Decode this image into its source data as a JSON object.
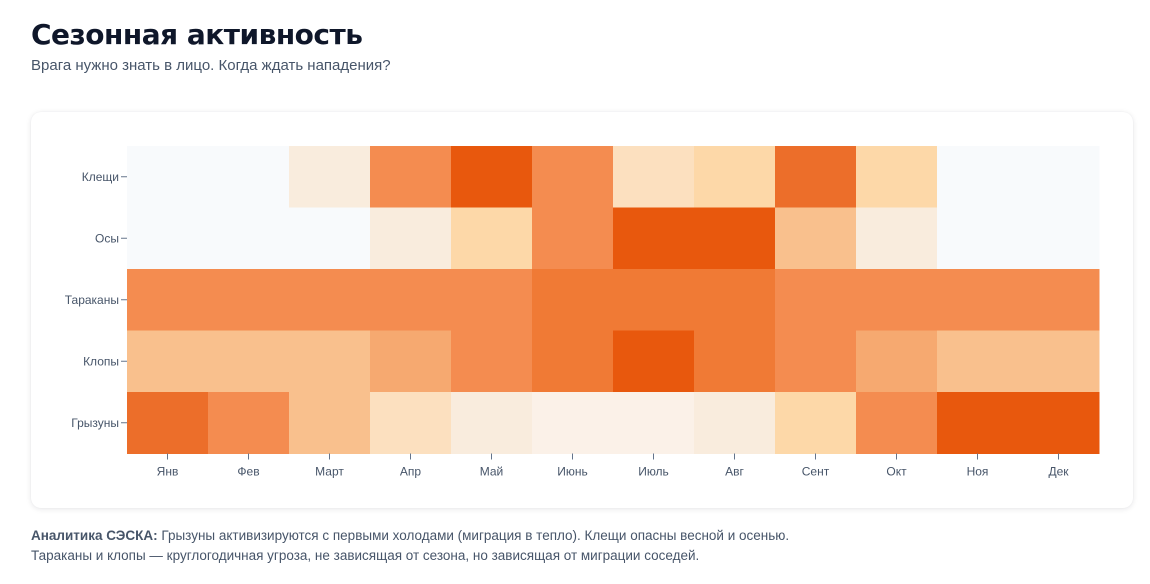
{
  "page": {
    "title": "Сезонная активность",
    "subtitle": "Врага нужно знать в лицо. Когда ждать нападения?"
  },
  "footnote": {
    "label": "Аналитика СЭСКА:",
    "text": "Грызуны активизируются с первыми холодами (миграция в тепло). Клещи опасны весной и осенью. Тараканы и клопы — круглогодичная угроза, не зависящая от сезона, но зависящая от миграции соседей."
  },
  "colors": {
    "scale": [
      "#f8fafc",
      "#fbf1e8",
      "#f9ecdd",
      "#fce0bf",
      "#fdd8a8",
      "#f9c08d",
      "#f6a970",
      "#f48c50",
      "#f07a35",
      "#ec6e2a",
      "#e8580d"
    ]
  },
  "chart_data": {
    "type": "heatmap",
    "title": "",
    "xlabel": "",
    "ylabel": "",
    "x": [
      "Янв",
      "Фев",
      "Март",
      "Апр",
      "Май",
      "Июнь",
      "Июль",
      "Авг",
      "Сент",
      "Окт",
      "Ноя",
      "Дек"
    ],
    "y": [
      "Клещи",
      "Осы",
      "Тараканы",
      "Клопы",
      "Грызуны"
    ],
    "values": [
      [
        0,
        0,
        2,
        7,
        10,
        7,
        3,
        4,
        9,
        4,
        0,
        0
      ],
      [
        0,
        0,
        0,
        2,
        4,
        7,
        10,
        10,
        5,
        2,
        0,
        0
      ],
      [
        7,
        7,
        7,
        7,
        7,
        8,
        8,
        8,
        7,
        7,
        7,
        7
      ],
      [
        5,
        5,
        5,
        6,
        7,
        8,
        10,
        8,
        7,
        6,
        5,
        5
      ],
      [
        9,
        7,
        5,
        3,
        2,
        1,
        1,
        2,
        4,
        7,
        10,
        10
      ]
    ],
    "scale_min": 0,
    "scale_max": 10,
    "grid": false,
    "legend": "none"
  }
}
